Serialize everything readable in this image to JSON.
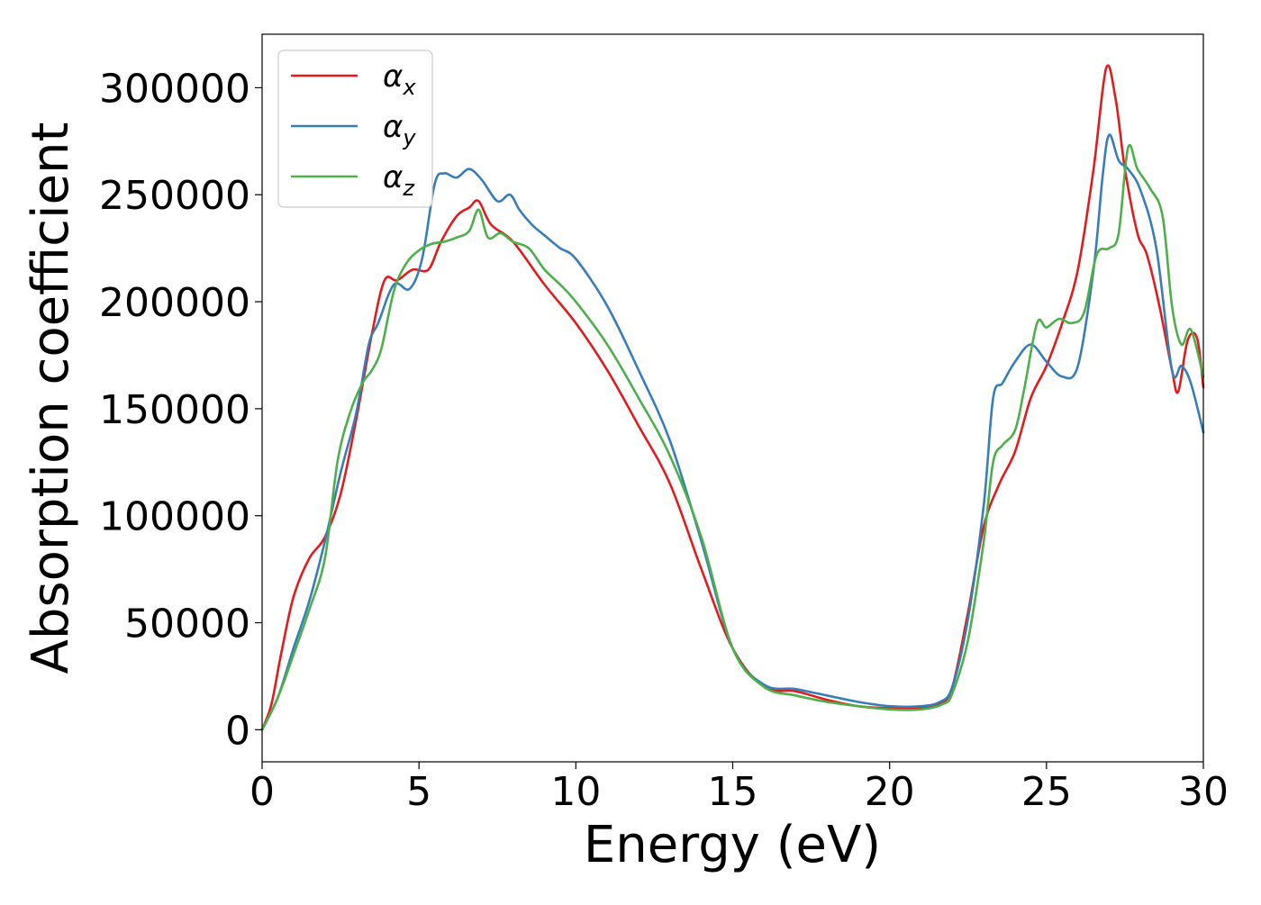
{
  "chart_data": {
    "type": "line",
    "xlabel": "Energy (eV)",
    "ylabel": "Absorption coefficient",
    "xlim": [
      0,
      30
    ],
    "ylim": [
      -15000,
      325000
    ],
    "xticks": [
      0,
      5,
      10,
      15,
      20,
      25,
      30
    ],
    "xtick_labels": [
      "0",
      "5",
      "10",
      "15",
      "20",
      "25",
      "30"
    ],
    "yticks": [
      0,
      50000,
      100000,
      150000,
      200000,
      250000,
      300000
    ],
    "ytick_labels": [
      "0",
      "50000",
      "100000",
      "150000",
      "200000",
      "250000",
      "300000"
    ],
    "grid": false,
    "legend_position": "top-left",
    "series": [
      {
        "name": "αx",
        "symbol": "α",
        "subscript": "x",
        "color": "#e41a1c",
        "x": [
          0,
          0.3,
          0.6,
          1.0,
          1.5,
          2.0,
          2.5,
          3.0,
          3.5,
          3.9,
          4.3,
          4.8,
          5.3,
          5.7,
          6.2,
          6.6,
          6.9,
          7.3,
          8.0,
          9.0,
          10.0,
          11.0,
          12.0,
          13.0,
          14.0,
          15.0,
          16.0,
          17.0,
          18.0,
          19.0,
          20.0,
          21.0,
          21.6,
          22.0,
          22.5,
          23.0,
          23.5,
          24.0,
          24.5,
          25.0,
          25.5,
          26.0,
          26.5,
          26.9,
          27.2,
          27.5,
          27.9,
          28.2,
          28.6,
          29.0,
          29.2,
          29.5,
          29.8,
          30.0
        ],
        "values": [
          0,
          12000,
          35000,
          62000,
          80000,
          90000,
          110000,
          145000,
          185000,
          210000,
          210000,
          215000,
          215000,
          228000,
          240000,
          244000,
          247000,
          236000,
          228000,
          208000,
          190000,
          168000,
          142000,
          115000,
          75000,
          38000,
          20000,
          18000,
          14000,
          11000,
          10000,
          10000,
          12000,
          20000,
          55000,
          95000,
          115000,
          130000,
          155000,
          170000,
          190000,
          215000,
          262000,
          309000,
          295000,
          262000,
          232000,
          222000,
          198000,
          168000,
          158000,
          182000,
          183000,
          160000
        ]
      },
      {
        "name": "αy",
        "symbol": "α",
        "subscript": "y",
        "color": "#377eb8",
        "x": [
          0,
          0.5,
          1.0,
          1.5,
          2.0,
          2.5,
          3.0,
          3.4,
          3.7,
          4.2,
          4.7,
          5.1,
          5.5,
          5.8,
          6.2,
          6.6,
          7.0,
          7.5,
          7.9,
          8.2,
          8.6,
          9.0,
          9.5,
          10.0,
          11.0,
          12.0,
          13.0,
          14.0,
          15.0,
          16.0,
          17.0,
          18.0,
          19.0,
          20.0,
          21.0,
          21.6,
          22.0,
          22.5,
          23.0,
          23.3,
          23.6,
          24.0,
          24.5,
          25.0,
          25.5,
          26.0,
          26.5,
          26.8,
          27.0,
          27.3,
          27.6,
          28.0,
          28.5,
          29.0,
          29.3,
          29.6,
          30.0
        ],
        "values": [
          0,
          15000,
          38000,
          60000,
          88000,
          120000,
          148000,
          180000,
          190000,
          208000,
          206000,
          220000,
          255000,
          260000,
          258000,
          262000,
          257000,
          247000,
          250000,
          243000,
          236000,
          231000,
          225000,
          220000,
          198000,
          168000,
          135000,
          88000,
          38000,
          21000,
          19000,
          16000,
          13000,
          11000,
          11000,
          13000,
          20000,
          52000,
          105000,
          155000,
          162000,
          172000,
          180000,
          172000,
          165000,
          170000,
          215000,
          260000,
          278000,
          266000,
          262000,
          252000,
          225000,
          168000,
          170000,
          162000,
          139000
        ]
      },
      {
        "name": "αz",
        "symbol": "α",
        "subscript": "z",
        "color": "#4daf4a",
        "x": [
          0,
          0.5,
          1.0,
          1.5,
          2.0,
          2.4,
          2.8,
          3.2,
          3.5,
          3.8,
          4.2,
          4.6,
          5.0,
          5.4,
          5.8,
          6.2,
          6.6,
          6.9,
          7.2,
          7.6,
          8.0,
          8.5,
          9.0,
          9.5,
          10.0,
          11.0,
          12.0,
          13.0,
          14.0,
          15.0,
          16.0,
          17.0,
          18.0,
          19.0,
          20.0,
          21.0,
          21.7,
          22.0,
          22.5,
          23.0,
          23.3,
          23.6,
          24.0,
          24.3,
          24.7,
          25.0,
          25.4,
          25.8,
          26.2,
          26.6,
          27.0,
          27.3,
          27.6,
          27.9,
          28.3,
          28.7,
          29.0,
          29.3,
          29.6,
          30.0
        ],
        "values": [
          0,
          15000,
          35000,
          56000,
          80000,
          125000,
          148000,
          162000,
          168000,
          178000,
          205000,
          218000,
          224000,
          227000,
          228000,
          230000,
          233000,
          243000,
          230000,
          232000,
          228000,
          225000,
          215000,
          208000,
          200000,
          180000,
          155000,
          128000,
          90000,
          38000,
          20000,
          16000,
          13000,
          11000,
          9500,
          9500,
          12000,
          17000,
          42000,
          88000,
          125000,
          133000,
          140000,
          160000,
          190000,
          188000,
          192000,
          190000,
          195000,
          222000,
          225000,
          232000,
          272000,
          262000,
          253000,
          240000,
          198000,
          180000,
          187000,
          165000
        ]
      }
    ]
  }
}
